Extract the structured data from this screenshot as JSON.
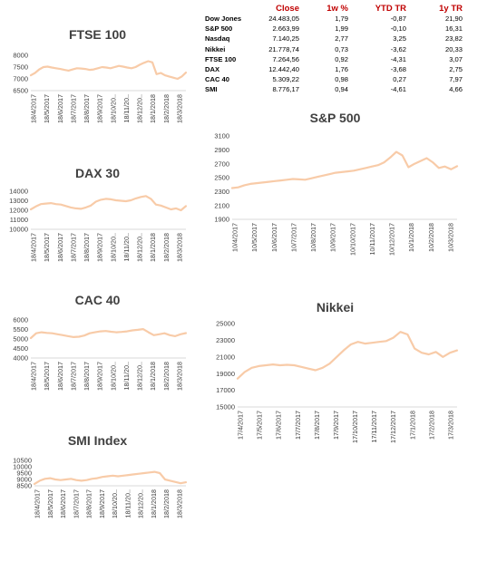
{
  "table": {
    "columns": [
      "Close",
      "1w %",
      "YTD TR",
      "1y TR"
    ],
    "rows": [
      {
        "name": "Dow Jones",
        "close": "24.483,05",
        "w1": "1,79",
        "ytd": "-0,87",
        "y1": "21,90"
      },
      {
        "name": "S&P 500",
        "close": "2.663,99",
        "w1": "1,99",
        "ytd": "-0,10",
        "y1": "16,31"
      },
      {
        "name": "Nasdaq",
        "close": "7.140,25",
        "w1": "2,77",
        "ytd": "3,25",
        "y1": "23,82"
      },
      {
        "name": "Nikkei",
        "close": "21.778,74",
        "w1": "0,73",
        "ytd": "-3,62",
        "y1": "20,33"
      },
      {
        "name": "FTSE 100",
        "close": "7.264,56",
        "w1": "0,92",
        "ytd": "-4,31",
        "y1": "3,07"
      },
      {
        "name": "DAX",
        "close": "12.442,40",
        "w1": "1,76",
        "ytd": "-3,68",
        "y1": "2,75"
      },
      {
        "name": "CAC 40",
        "close": "5.309,22",
        "w1": "0,98",
        "ytd": "0,27",
        "y1": "7,97"
      },
      {
        "name": "SMI",
        "close": "8.776,17",
        "w1": "0,94",
        "ytd": "-4,61",
        "y1": "4,66"
      }
    ]
  },
  "colors": {
    "line": "#f8cba8",
    "axis": "#d9d9d9",
    "text": "#404040",
    "header": "#c00000"
  },
  "chart_data": [
    {
      "id": "ftse",
      "type": "line",
      "title": "FTSE 100",
      "ylim": [
        6500,
        8000
      ],
      "yticks": [
        6500,
        7000,
        7500,
        8000
      ],
      "xticks": [
        "18/4/2017",
        "18/5/2017",
        "18/6/2017",
        "18/7/2017",
        "18/8/2017",
        "18/9/2017",
        "18/10/20..",
        "18/11/20..",
        "18/12/20..",
        "18/1/2018",
        "18/2/2018",
        "18/3/2018"
      ],
      "values": [
        7150,
        7250,
        7400,
        7500,
        7520,
        7480,
        7450,
        7420,
        7380,
        7350,
        7400,
        7450,
        7440,
        7420,
        7380,
        7400,
        7450,
        7500,
        7480,
        7450,
        7500,
        7550,
        7520,
        7480,
        7450,
        7500,
        7600,
        7680,
        7750,
        7700,
        7200,
        7250,
        7150,
        7100,
        7050,
        7000,
        7100,
        7264
      ]
    },
    {
      "id": "dax",
      "type": "line",
      "title": "DAX 30",
      "ylim": [
        10000,
        14000
      ],
      "yticks": [
        10000,
        11000,
        12000,
        13000,
        14000
      ],
      "xticks": [
        "18/4/2017",
        "18/5/2017",
        "18/6/2017",
        "18/7/2017",
        "18/8/2017",
        "18/9/2017",
        "18/10/20..",
        "18/11/20..",
        "18/12/20..",
        "18/1/2018",
        "18/2/2018",
        "18/3/2018"
      ],
      "values": [
        12100,
        12400,
        12650,
        12700,
        12750,
        12650,
        12600,
        12450,
        12300,
        12200,
        12150,
        12300,
        12500,
        12900,
        13100,
        13200,
        13150,
        13050,
        13000,
        12950,
        13050,
        13250,
        13400,
        13500,
        13200,
        12600,
        12500,
        12300,
        12100,
        12200,
        12000,
        12442
      ]
    },
    {
      "id": "cac",
      "type": "line",
      "title": "CAC 40",
      "ylim": [
        4000,
        6000
      ],
      "yticks": [
        4000,
        4500,
        5000,
        5500,
        6000
      ],
      "xticks": [
        "18/4/2017",
        "18/5/2017",
        "18/6/2017",
        "18/7/2017",
        "18/8/2017",
        "18/9/2017",
        "18/10/20..",
        "18/11/20..",
        "18/12/20..",
        "18/1/2018",
        "18/2/2018",
        "18/3/2018"
      ],
      "values": [
        5050,
        5300,
        5350,
        5320,
        5300,
        5250,
        5200,
        5150,
        5100,
        5120,
        5180,
        5300,
        5350,
        5400,
        5420,
        5380,
        5350,
        5370,
        5400,
        5450,
        5480,
        5520,
        5350,
        5200,
        5250,
        5300,
        5200,
        5150,
        5250,
        5309
      ]
    },
    {
      "id": "smi",
      "type": "line",
      "title": "SMI Index",
      "ylim": [
        8500,
        10500
      ],
      "yticks": [
        8500,
        9000,
        9500,
        10000,
        10500
      ],
      "xticks": [
        "18/4/2017",
        "18/5/2017",
        "18/6/2017",
        "18/7/2017",
        "18/8/2017",
        "18/9/2017",
        "18/10/20..",
        "18/11/20..",
        "18/12/20..",
        "18/1/2018",
        "18/2/2018",
        "18/3/2018"
      ],
      "values": [
        8650,
        8900,
        9050,
        9100,
        9000,
        8950,
        9000,
        9050,
        8950,
        8900,
        8950,
        9050,
        9100,
        9200,
        9250,
        9300,
        9250,
        9300,
        9350,
        9400,
        9450,
        9500,
        9550,
        9600,
        9500,
        9000,
        8900,
        8800,
        8700,
        8776
      ]
    },
    {
      "id": "sp500",
      "type": "line",
      "title": "S&P 500",
      "ylim": [
        1900,
        3100
      ],
      "yticks": [
        1900,
        2100,
        2300,
        2500,
        2700,
        2900,
        3100
      ],
      "xticks": [
        "10/4/2017",
        "10/5/2017",
        "10/6/2017",
        "10/7/2017",
        "10/8/2017",
        "10/9/2017",
        "10/10/2017",
        "10/11/2017",
        "10/12/2017",
        "10/1/2018",
        "10/2/2018",
        "10/3/2018"
      ],
      "values": [
        2350,
        2360,
        2390,
        2410,
        2420,
        2430,
        2440,
        2450,
        2460,
        2470,
        2480,
        2475,
        2470,
        2490,
        2510,
        2530,
        2550,
        2570,
        2580,
        2590,
        2600,
        2620,
        2640,
        2660,
        2680,
        2720,
        2790,
        2870,
        2820,
        2650,
        2700,
        2740,
        2780,
        2720,
        2640,
        2660,
        2620,
        2664
      ]
    },
    {
      "id": "nikkei",
      "type": "line",
      "title": "Nikkei",
      "ylim": [
        15000,
        25000
      ],
      "yticks": [
        15000,
        17000,
        19000,
        21000,
        23000,
        25000
      ],
      "xticks": [
        "17/4/2017",
        "17/5/2017",
        "17/6/2017",
        "17/7/2017",
        "17/8/2017",
        "17/9/2017",
        "17/10/2017",
        "17/11/2017",
        "17/12/2017",
        "17/1/2018",
        "17/2/2018",
        "17/3/2018"
      ],
      "values": [
        18400,
        19200,
        19700,
        19900,
        20000,
        20100,
        20000,
        20050,
        20000,
        19800,
        19600,
        19400,
        19700,
        20200,
        21000,
        21800,
        22500,
        22800,
        22600,
        22700,
        22800,
        22900,
        23300,
        24000,
        23700,
        22000,
        21500,
        21300,
        21600,
        21000,
        21500,
        21779
      ]
    }
  ]
}
